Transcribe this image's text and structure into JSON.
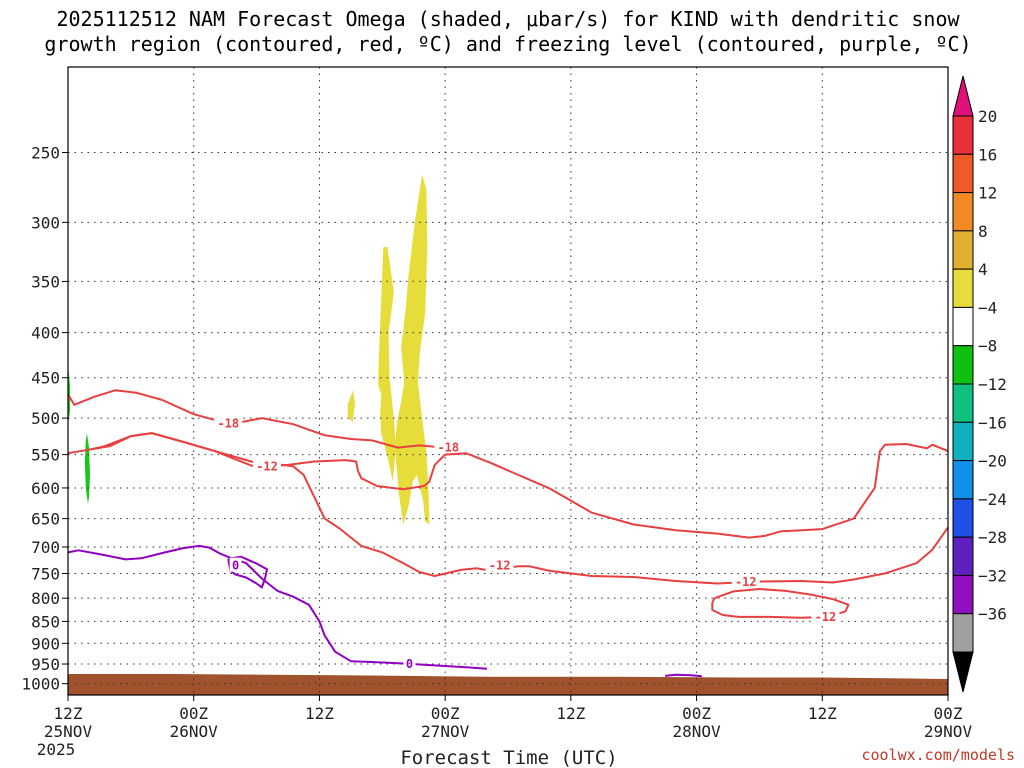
{
  "chart_data": {
    "type": "contour",
    "title_line1": "2025112512 NAM Forecast Omega (shaded, μbar/s) for KIND with dendritic snow",
    "title_line2": "growth region (contoured, red, ºC) and freezing level (contoured, purple, ºC)",
    "xlabel": "Forecast Time (UTC)",
    "credit": "coolwx.com/models",
    "x_range_hours": [
      0,
      84
    ],
    "x_ticks": [
      {
        "hour": 0,
        "line1": "12Z",
        "line2": "25NOV",
        "line3": "2025"
      },
      {
        "hour": 12,
        "line1": "00Z",
        "line2": "26NOV",
        "line3": ""
      },
      {
        "hour": 24,
        "line1": "12Z",
        "line2": "",
        "line3": ""
      },
      {
        "hour": 36,
        "line1": "00Z",
        "line2": "27NOV",
        "line3": ""
      },
      {
        "hour": 48,
        "line1": "12Z",
        "line2": "",
        "line3": ""
      },
      {
        "hour": 60,
        "line1": "00Z",
        "line2": "28NOV",
        "line3": ""
      },
      {
        "hour": 72,
        "line1": "12Z",
        "line2": "",
        "line3": ""
      },
      {
        "hour": 84,
        "line1": "00Z",
        "line2": "29NOV",
        "line3": ""
      }
    ],
    "y_axis": "pressure (hPa), log scale, inverted",
    "y_range_hpa": [
      200,
      1030
    ],
    "y_ticks": [
      250,
      300,
      350,
      400,
      450,
      500,
      550,
      600,
      650,
      700,
      750,
      800,
      850,
      900,
      950,
      1000
    ],
    "colorbar": {
      "labels": [
        "20",
        "16",
        "12",
        "8",
        "4",
        "−4",
        "−8",
        "−12",
        "−16",
        "−20",
        "−24",
        "−28",
        "−32",
        "−36"
      ],
      "colors": [
        "#e8303a",
        "#f05a28",
        "#f08a24",
        "#e0b030",
        "#e8dc3c",
        "#ffffff",
        "#10c010",
        "#10c080",
        "#10b0c0",
        "#1090e8",
        "#2050e8",
        "#6020c0",
        "#9010c0",
        "#a0a0a0"
      ],
      "top_arrow_color": "#e0107a",
      "bottom_arrow_color": "#000000"
    },
    "omega_shading": [
      {
        "level": "4 to 8",
        "color": "#e6dc3a",
        "polygon": [
          [
            26.7,
            483
          ],
          [
            27.2,
            465
          ],
          [
            27.4,
            482
          ],
          [
            27.2,
            500
          ],
          [
            27.2,
            505
          ],
          [
            26.9,
            502
          ],
          [
            26.7,
            497
          ]
        ]
      },
      {
        "level": "4 to 8",
        "color": "#e6dc3a",
        "polygon": [
          [
            29.7,
            420
          ],
          [
            30.1,
            320
          ],
          [
            30.5,
            320
          ],
          [
            31.1,
            360
          ],
          [
            30.6,
            400
          ],
          [
            30.7,
            450
          ],
          [
            31.1,
            500
          ],
          [
            31.3,
            540
          ],
          [
            31.0,
            590
          ],
          [
            30.6,
            560
          ],
          [
            29.9,
            520
          ],
          [
            29.8,
            495
          ],
          [
            29.9,
            470
          ],
          [
            29.6,
            458
          ]
        ]
      },
      {
        "level": "4 to 8",
        "color": "#e6dc3a",
        "polygon": [
          [
            31.8,
            415
          ],
          [
            32.2,
            380
          ],
          [
            32.5,
            345
          ],
          [
            33.1,
            300
          ],
          [
            33.8,
            265
          ],
          [
            34.2,
            275
          ],
          [
            34.3,
            320
          ],
          [
            34.1,
            380
          ],
          [
            33.6,
            420
          ],
          [
            33.4,
            455
          ],
          [
            33.8,
            500
          ],
          [
            34.2,
            545
          ],
          [
            34.4,
            600
          ],
          [
            34.5,
            660
          ],
          [
            34.1,
            655
          ],
          [
            33.9,
            620
          ],
          [
            33.3,
            580
          ],
          [
            32.9,
            590
          ],
          [
            32.5,
            630
          ],
          [
            32.0,
            660
          ],
          [
            31.6,
            610
          ],
          [
            31.4,
            575
          ],
          [
            31.2,
            540
          ],
          [
            31.4,
            505
          ],
          [
            31.8,
            480
          ],
          [
            32.1,
            455
          ]
        ]
      },
      {
        "level": "-8 to -4",
        "color": "#18c818",
        "polygon": [
          [
            0.0,
            435
          ],
          [
            0.2,
            460
          ],
          [
            0.2,
            490
          ],
          [
            0.0,
            510
          ]
        ]
      },
      {
        "level": "-8 to -4",
        "color": "#18c818",
        "polygon": [
          [
            1.8,
            520
          ],
          [
            2.0,
            540
          ],
          [
            2.1,
            580
          ],
          [
            2.0,
            615
          ],
          [
            1.9,
            625
          ],
          [
            1.7,
            600
          ],
          [
            1.6,
            560
          ],
          [
            1.7,
            530
          ]
        ]
      }
    ],
    "dgz_contours": [
      {
        "value": "-18",
        "color": "#e84040",
        "points": [
          [
            0,
            470
          ],
          [
            0.6,
            483
          ],
          [
            2.5,
            473
          ],
          [
            4.5,
            465
          ],
          [
            6.5,
            468
          ],
          [
            9,
            477
          ],
          [
            12,
            495
          ],
          [
            15.5,
            508
          ],
          [
            18.5,
            500
          ],
          [
            21.5,
            508
          ],
          [
            24.5,
            523
          ],
          [
            27,
            528
          ],
          [
            29,
            530
          ],
          [
            31.5,
            540
          ],
          [
            33.5,
            537
          ],
          [
            36,
            540
          ]
        ],
        "labels": [
          {
            "x": 15.3,
            "p": 507,
            "text": "-18"
          },
          {
            "x": 36.3,
            "p": 540,
            "text": "-18"
          }
        ]
      },
      {
        "value": "-18",
        "color": "#e84040",
        "points": [
          [
            0,
            548
          ],
          [
            2,
            543
          ],
          [
            3.5,
            538
          ],
          [
            6,
            524
          ],
          [
            8,
            520
          ],
          [
            11,
            532
          ],
          [
            14,
            545
          ],
          [
            17.5,
            566
          ],
          [
            19.5,
            567
          ],
          [
            21,
            565
          ],
          [
            23.5,
            560
          ],
          [
            26.5,
            558
          ],
          [
            27.5,
            560
          ],
          [
            27.7,
            575
          ],
          [
            28,
            585
          ],
          [
            29.5,
            597
          ],
          [
            32,
            602
          ],
          [
            34,
            597
          ],
          [
            34.5,
            590
          ],
          [
            35,
            565
          ],
          [
            36,
            550
          ],
          [
            38,
            548
          ],
          [
            40.5,
            563
          ],
          [
            43,
            580
          ],
          [
            46,
            601
          ],
          [
            50,
            640
          ],
          [
            54,
            660
          ],
          [
            58,
            670
          ],
          [
            62,
            676
          ],
          [
            65,
            683
          ],
          [
            66.5,
            680
          ],
          [
            68,
            672
          ],
          [
            72,
            668
          ],
          [
            75,
            650
          ],
          [
            77,
            600
          ],
          [
            77.5,
            545
          ],
          [
            78,
            536
          ],
          [
            80,
            535
          ],
          [
            82,
            541
          ],
          [
            82.5,
            536
          ],
          [
            84,
            545
          ]
        ]
      },
      {
        "value": "-12",
        "color": "#e84040",
        "points": [
          [
            2,
            543
          ],
          [
            4,
            538
          ],
          [
            6,
            524
          ],
          [
            8,
            520
          ],
          [
            11,
            532
          ],
          [
            14,
            545
          ],
          [
            17.5,
            560
          ],
          [
            19.5,
            567
          ],
          [
            20,
            564
          ],
          [
            21.5,
            567
          ],
          [
            22.5,
            580
          ],
          [
            24.5,
            650
          ],
          [
            26,
            668
          ],
          [
            28,
            698
          ],
          [
            30,
            710
          ],
          [
            32,
            730
          ],
          [
            33.5,
            747
          ],
          [
            35,
            755
          ],
          [
            37.5,
            743
          ],
          [
            39,
            740
          ],
          [
            40.5,
            745
          ],
          [
            41.5,
            740
          ],
          [
            43,
            736
          ],
          [
            44,
            736
          ],
          [
            46,
            745
          ],
          [
            50,
            755
          ],
          [
            54,
            757
          ],
          [
            58,
            765
          ],
          [
            62,
            770
          ],
          [
            64,
            768
          ],
          [
            66,
            766
          ],
          [
            70,
            765
          ],
          [
            73,
            768
          ],
          [
            75,
            762
          ],
          [
            78,
            750
          ],
          [
            81,
            730
          ],
          [
            82.5,
            705
          ],
          [
            84,
            665
          ]
        ],
        "labels": [
          {
            "x": 19,
            "p": 567,
            "text": "-12"
          },
          {
            "x": 41.2,
            "p": 735,
            "text": "-12"
          },
          {
            "x": 64.7,
            "p": 767,
            "text": "-12"
          }
        ]
      },
      {
        "value": "-12",
        "color": "#e84040",
        "points": [
          [
            61.7,
            800
          ],
          [
            63.5,
            786
          ],
          [
            66,
            781
          ],
          [
            68.5,
            785
          ],
          [
            71,
            793
          ],
          [
            73,
            802
          ],
          [
            74.5,
            814
          ],
          [
            74.2,
            828
          ],
          [
            72.5,
            840
          ],
          [
            70,
            842
          ],
          [
            67,
            840
          ],
          [
            64,
            840
          ],
          [
            62.5,
            836
          ],
          [
            61.5,
            825
          ],
          [
            61.5,
            810
          ],
          [
            61.7,
            800
          ]
        ],
        "labels": [
          {
            "x": 72.3,
            "p": 840,
            "text": "-12"
          }
        ]
      }
    ],
    "freezing_contours": [
      {
        "value": "0",
        "color": "#9000c0",
        "points": [
          [
            0,
            710
          ],
          [
            1,
            706
          ],
          [
            3,
            713
          ],
          [
            5.5,
            723
          ],
          [
            7,
            721
          ],
          [
            9,
            711
          ],
          [
            11,
            702
          ],
          [
            12.5,
            698
          ],
          [
            13.5,
            701
          ],
          [
            14.5,
            712
          ],
          [
            15.5,
            720
          ],
          [
            17,
            730
          ],
          [
            18.5,
            760
          ],
          [
            20,
            785
          ],
          [
            21.5,
            797
          ],
          [
            23,
            814
          ],
          [
            24,
            850
          ],
          [
            24.5,
            882
          ],
          [
            25.5,
            920
          ],
          [
            27,
            943
          ],
          [
            29,
            945
          ],
          [
            31.5,
            948
          ],
          [
            34,
            952
          ],
          [
            38,
            958
          ],
          [
            40,
            962
          ]
        ],
        "labels": [
          {
            "x": 32.6,
            "p": 950,
            "text": "0"
          }
        ]
      },
      {
        "value": "0",
        "color": "#9000c0",
        "points": [
          [
            15.3,
            722
          ],
          [
            16.5,
            718
          ],
          [
            18,
            731
          ],
          [
            19,
            742
          ],
          [
            18.8,
            760
          ],
          [
            18.5,
            778
          ],
          [
            18,
            770
          ],
          [
            17,
            758
          ],
          [
            16,
            752
          ],
          [
            15.5,
            745
          ],
          [
            15.3,
            722
          ]
        ],
        "labels": [
          {
            "x": 16.0,
            "p": 735,
            "text": "0"
          }
        ]
      },
      {
        "value": "0",
        "color": "#9000c0",
        "points": [
          [
            57,
            980
          ],
          [
            58,
            977
          ],
          [
            59.5,
            978
          ],
          [
            60.5,
            981
          ]
        ]
      }
    ],
    "terrain": {
      "color": "#a0522d",
      "surface_hpa": [
        [
          0,
          975
        ],
        [
          10,
          975
        ],
        [
          26,
          978
        ],
        [
          40,
          982
        ],
        [
          52,
          982
        ],
        [
          64,
          984
        ],
        [
          72,
          984
        ],
        [
          84,
          988
        ]
      ]
    }
  }
}
